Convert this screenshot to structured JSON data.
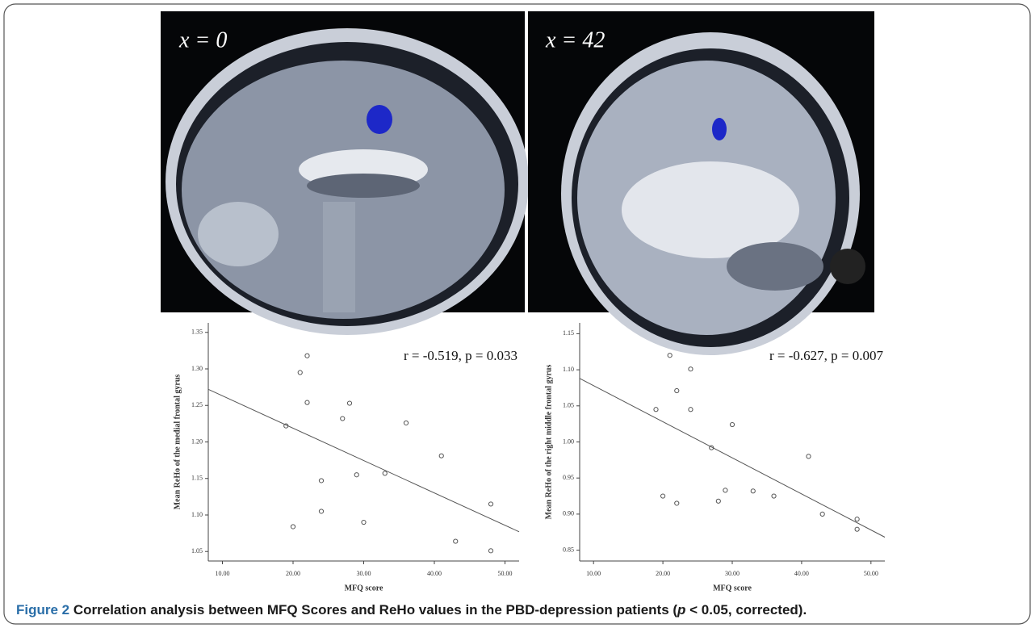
{
  "images": [
    {
      "label": "x = 0"
    },
    {
      "label": "x = 42"
    }
  ],
  "caption": [
    "Figure 2",
    " Correlation analysis between MFQ Scores and ReHo values in the PBD-depression patients (",
    "p",
    " < 0.05, corrected)."
  ],
  "chart_data": [
    {
      "type": "scatter",
      "annotation": "r = -0.519, p = 0.033",
      "x_label": "MFQ score",
      "y_label": "Mean ReHo of the medial frontal gyrus",
      "x": [
        19,
        21,
        22,
        22,
        20,
        24,
        24,
        27,
        28,
        29,
        30,
        33,
        36,
        41,
        43,
        48,
        48
      ],
      "series": [
        {
          "name": null,
          "color": "#555555",
          "values": [
            1.222,
            1.295,
            1.318,
            1.254,
            1.084,
            1.147,
            1.105,
            1.232,
            1.253,
            1.155,
            1.09,
            1.157,
            1.226,
            1.181,
            1.064,
            1.115,
            1.051
          ]
        }
      ],
      "trendline": {
        "x": [
          8,
          52
        ],
        "y": [
          1.272,
          1.077
        ]
      },
      "xlim": [
        8,
        52
      ],
      "xticks": [
        {
          "value": 10,
          "label": "10.00"
        },
        {
          "value": 20,
          "label": "20.00"
        },
        {
          "value": 30,
          "label": "30.00"
        },
        {
          "value": 40,
          "label": "40.00"
        },
        {
          "value": 50,
          "label": "50.00"
        }
      ],
      "ylim": [
        1.037,
        1.363
      ],
      "yticks": [
        1.05,
        {
          "value": 1.1,
          "label": "1.10"
        },
        1.15,
        {
          "value": 1.2,
          "label": "1.20"
        },
        1.25,
        {
          "value": 1.3,
          "label": "1.30"
        },
        1.35
      ]
    },
    {
      "type": "scatter",
      "annotation": "r = -0.627, p = 0.007",
      "x_label": "MFQ score",
      "y_label": "Mean ReHo of the right middle frontal gyrus",
      "x": [
        19,
        20,
        21,
        22,
        22,
        24,
        24,
        27,
        28,
        29,
        30,
        33,
        36,
        41,
        43,
        48,
        48
      ],
      "series": [
        {
          "name": null,
          "color": "#555555",
          "values": [
            1.045,
            0.925,
            1.12,
            1.071,
            0.915,
            1.101,
            1.045,
            0.992,
            0.918,
            0.933,
            1.024,
            0.932,
            0.925,
            0.98,
            0.9,
            0.893,
            0.879
          ]
        }
      ],
      "trendline": {
        "x": [
          8,
          52
        ],
        "y": [
          1.088,
          0.868
        ]
      },
      "xlim": [
        8,
        52
      ],
      "xticks": [
        {
          "value": 10,
          "label": "10.00"
        },
        {
          "value": 20,
          "label": "20.00"
        },
        {
          "value": 30,
          "label": "30.00"
        },
        {
          "value": 40,
          "label": "40.00"
        },
        {
          "value": 50,
          "label": "50.00"
        }
      ],
      "ylim": [
        0.835,
        1.165
      ],
      "yticks": [
        0.85,
        {
          "value": 0.9,
          "label": "0.90"
        },
        0.95,
        {
          "value": 1.0,
          "label": "1.00"
        },
        1.05,
        {
          "value": 1.1,
          "label": "1.10"
        },
        1.15
      ]
    }
  ]
}
